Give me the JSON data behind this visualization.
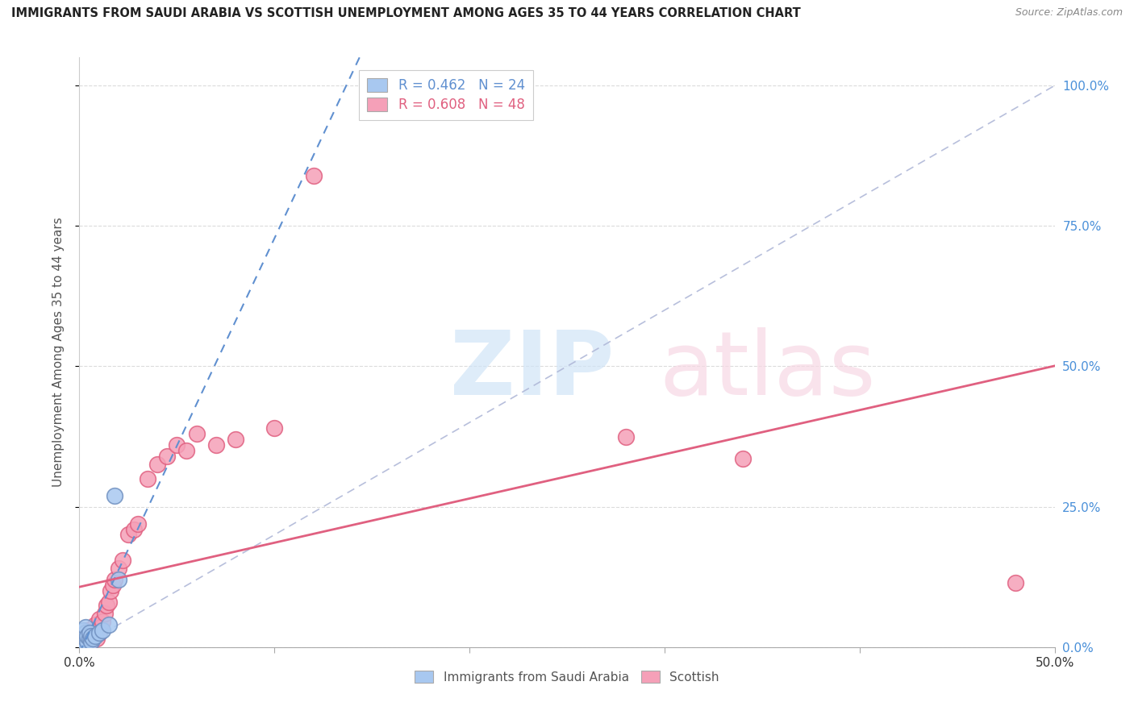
{
  "title": "IMMIGRANTS FROM SAUDI ARABIA VS SCOTTISH UNEMPLOYMENT AMONG AGES 35 TO 44 YEARS CORRELATION CHART",
  "source": "Source: ZipAtlas.com",
  "ylabel": "Unemployment Among Ages 35 to 44 years",
  "xlim": [
    0.0,
    0.5
  ],
  "ylim": [
    0.0,
    1.05
  ],
  "blue_R": 0.462,
  "blue_N": 24,
  "pink_R": 0.608,
  "pink_N": 48,
  "blue_color": "#a8c8f0",
  "pink_color": "#f5a0b8",
  "blue_edge_color": "#7090c0",
  "pink_edge_color": "#e06080",
  "blue_trend_color": "#6090d0",
  "pink_trend_color": "#e06080",
  "diag_line_color": "#b0b8d8",
  "legend_label_blue": "Immigrants from Saudi Arabia",
  "legend_label_pink": "Scottish",
  "background_color": "#ffffff",
  "grid_color": "#d8d8d8",
  "right_axis_color": "#4a90d9",
  "blue_points_x": [
    0.001,
    0.001,
    0.001,
    0.002,
    0.002,
    0.002,
    0.002,
    0.003,
    0.003,
    0.003,
    0.003,
    0.004,
    0.004,
    0.005,
    0.005,
    0.006,
    0.006,
    0.007,
    0.008,
    0.01,
    0.012,
    0.015,
    0.02,
    0.018
  ],
  "blue_points_y": [
    0.005,
    0.01,
    0.015,
    0.005,
    0.01,
    0.02,
    0.03,
    0.005,
    0.015,
    0.025,
    0.035,
    0.01,
    0.02,
    0.015,
    0.025,
    0.01,
    0.02,
    0.015,
    0.02,
    0.025,
    0.03,
    0.04,
    0.12,
    0.27
  ],
  "pink_points_x": [
    0.001,
    0.001,
    0.001,
    0.002,
    0.002,
    0.003,
    0.003,
    0.003,
    0.004,
    0.004,
    0.004,
    0.005,
    0.005,
    0.006,
    0.006,
    0.007,
    0.007,
    0.008,
    0.008,
    0.009,
    0.01,
    0.01,
    0.011,
    0.012,
    0.013,
    0.014,
    0.015,
    0.016,
    0.017,
    0.018,
    0.02,
    0.022,
    0.025,
    0.028,
    0.03,
    0.035,
    0.04,
    0.045,
    0.05,
    0.055,
    0.06,
    0.07,
    0.08,
    0.1,
    0.12,
    0.28,
    0.34,
    0.48
  ],
  "pink_points_y": [
    0.005,
    0.01,
    0.02,
    0.005,
    0.015,
    0.005,
    0.015,
    0.025,
    0.01,
    0.02,
    0.03,
    0.005,
    0.015,
    0.01,
    0.025,
    0.015,
    0.03,
    0.02,
    0.04,
    0.015,
    0.025,
    0.05,
    0.035,
    0.045,
    0.06,
    0.075,
    0.08,
    0.1,
    0.11,
    0.12,
    0.14,
    0.155,
    0.2,
    0.21,
    0.22,
    0.3,
    0.325,
    0.34,
    0.36,
    0.35,
    0.38,
    0.36,
    0.37,
    0.39,
    0.84,
    0.375,
    0.335,
    0.115
  ],
  "blue_trend_line": [
    0.0,
    0.5,
    0.0,
    1.05
  ],
  "pink_trend_line_y_start": 0.02,
  "pink_trend_line_y_end": 0.5
}
